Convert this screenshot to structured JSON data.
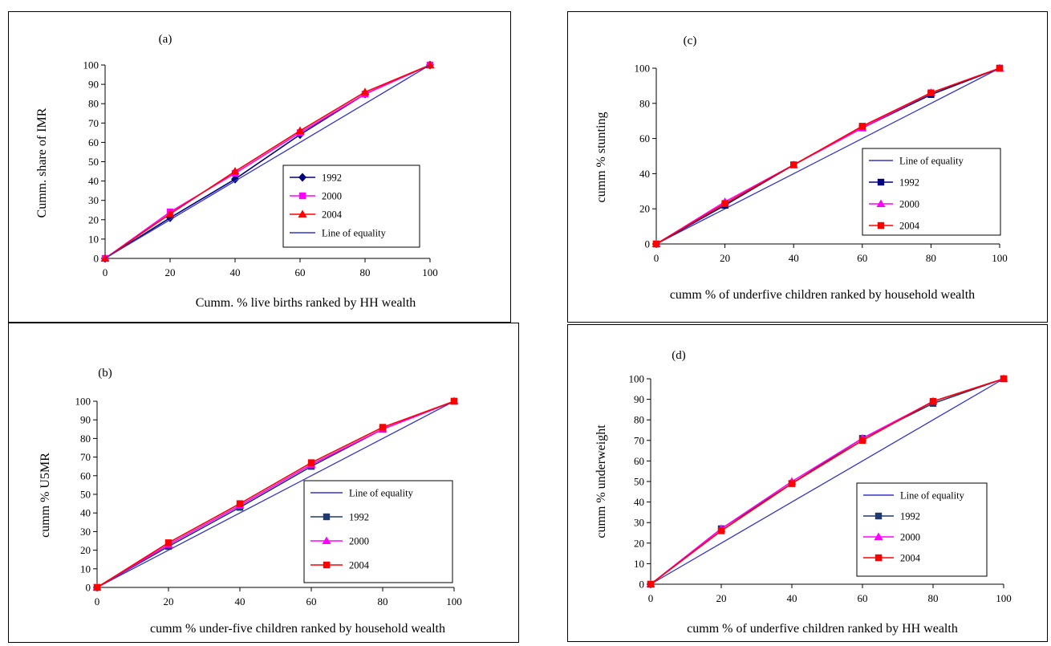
{
  "chart_data": [
    {
      "type": "line",
      "panel_label": "(a)",
      "xlabel": "Cumm. % live births ranked by HH wealth",
      "ylabel": "Cumm. share of IMR",
      "x": [
        0,
        20,
        40,
        60,
        80,
        100
      ],
      "xticks": [
        "0",
        "20",
        "40",
        "60",
        "80",
        "100"
      ],
      "yticks": [
        "0",
        "10",
        "20",
        "30",
        "40",
        "50",
        "60",
        "70",
        "80",
        "90",
        "100"
      ],
      "xlim": [
        0,
        100
      ],
      "ylim": [
        0,
        100
      ],
      "legend_position": "lower-right",
      "series": [
        {
          "name": "1992",
          "values": [
            0,
            21,
            41,
            64,
            85,
            100
          ],
          "color": "#000080",
          "marker": "diamond"
        },
        {
          "name": "2000",
          "values": [
            0,
            24,
            44,
            65,
            85,
            100
          ],
          "color": "#ff00ff",
          "marker": "square"
        },
        {
          "name": "2004",
          "values": [
            0,
            23,
            45,
            66,
            86,
            100
          ],
          "color": "#ff0000",
          "marker": "triangle"
        },
        {
          "name": "Line of equality",
          "values": [
            0,
            20,
            40,
            60,
            80,
            100
          ],
          "color": "#3333cc",
          "marker": "none"
        }
      ]
    },
    {
      "type": "line",
      "panel_label": "(b)",
      "xlabel": "cumm % under-five children ranked by household wealth",
      "ylabel": "cumm % U5MR",
      "x": [
        0,
        20,
        40,
        60,
        80,
        100
      ],
      "xticks": [
        "0",
        "20",
        "40",
        "60",
        "80",
        "100"
      ],
      "yticks": [
        "0",
        "10",
        "20",
        "30",
        "40",
        "50",
        "60",
        "70",
        "80",
        "90",
        "100"
      ],
      "xlim": [
        0,
        100
      ],
      "ylim": [
        0,
        100
      ],
      "legend_position": "lower-right",
      "series": [
        {
          "name": "Line of equality",
          "values": [
            0,
            20,
            40,
            60,
            80,
            100
          ],
          "color": "#3333cc",
          "marker": "none"
        },
        {
          "name": "1992",
          "values": [
            0,
            22,
            43,
            65,
            85,
            100
          ],
          "color": "#1f3a6e",
          "marker": "square"
        },
        {
          "name": "2000",
          "values": [
            0,
            23,
            44,
            66,
            85,
            100
          ],
          "color": "#ff00ff",
          "marker": "triangle"
        },
        {
          "name": "2004",
          "values": [
            0,
            24,
            45,
            67,
            86,
            100
          ],
          "color": "#ff0000",
          "marker": "square"
        }
      ]
    },
    {
      "type": "line",
      "panel_label": "(c)",
      "xlabel": "cumm % of underfive children ranked by household wealth",
      "ylabel": "cumm % stunting",
      "x": [
        0,
        20,
        40,
        60,
        80,
        100
      ],
      "xticks": [
        "0",
        "20",
        "40",
        "60",
        "80",
        "100"
      ],
      "yticks": [
        "0",
        "20",
        "40",
        "60",
        "80",
        "100"
      ],
      "xlim": [
        0,
        100
      ],
      "ylim": [
        0,
        100
      ],
      "legend_position": "lower-right",
      "series": [
        {
          "name": "Line of equality",
          "values": [
            0,
            20,
            40,
            60,
            80,
            100
          ],
          "color": "#3333cc",
          "marker": "none"
        },
        {
          "name": "1992",
          "values": [
            0,
            22,
            45,
            66,
            85,
            100
          ],
          "color": "#000080",
          "marker": "square"
        },
        {
          "name": "2000",
          "values": [
            0,
            24,
            45,
            66,
            86,
            100
          ],
          "color": "#ff00ff",
          "marker": "triangle"
        },
        {
          "name": "2004",
          "values": [
            0,
            23,
            45,
            67,
            86,
            100
          ],
          "color": "#ff0000",
          "marker": "square"
        }
      ]
    },
    {
      "type": "line",
      "panel_label": "(d)",
      "xlabel": "cumm % of underfive children ranked by HH wealth",
      "ylabel": "cumm % underweight",
      "x": [
        0,
        20,
        40,
        60,
        80,
        100
      ],
      "xticks": [
        "0",
        "20",
        "40",
        "60",
        "80",
        "100"
      ],
      "yticks": [
        "0",
        "10",
        "20",
        "30",
        "40",
        "50",
        "60",
        "70",
        "80",
        "90",
        "100"
      ],
      "xlim": [
        0,
        100
      ],
      "ylim": [
        0,
        100
      ],
      "legend_position": "lower-right",
      "series": [
        {
          "name": "Line of equality",
          "values": [
            0,
            20,
            40,
            60,
            80,
            100
          ],
          "color": "#3333cc",
          "marker": "none"
        },
        {
          "name": "1992",
          "values": [
            0,
            27,
            49,
            71,
            88,
            100
          ],
          "color": "#1f3a6e",
          "marker": "square"
        },
        {
          "name": "2000",
          "values": [
            0,
            27,
            50,
            71,
            89,
            100
          ],
          "color": "#ff00ff",
          "marker": "triangle"
        },
        {
          "name": "2004",
          "values": [
            0,
            26,
            49,
            70,
            89,
            100
          ],
          "color": "#ff0000",
          "marker": "square"
        }
      ]
    }
  ]
}
